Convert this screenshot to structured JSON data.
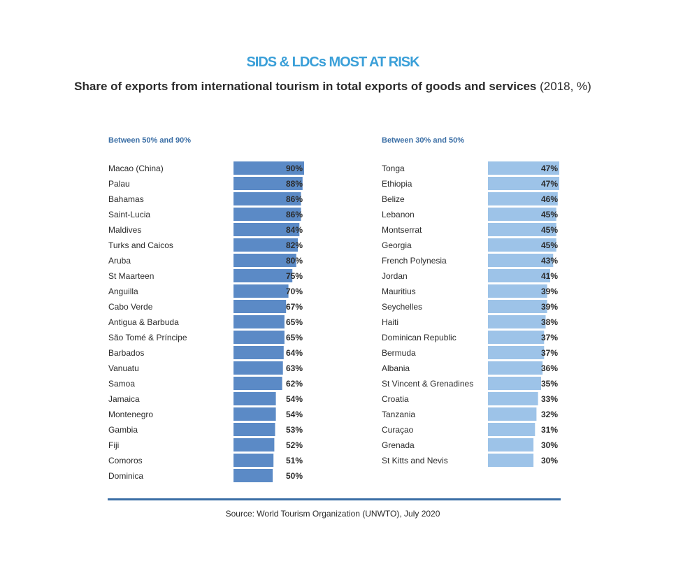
{
  "chart_data": {
    "type": "bar",
    "orientation": "horizontal",
    "title": "SIDS & LDCs MOST AT RISK",
    "subtitle_bold": "Share of exports from international tourism in total exports of goods and services",
    "subtitle_unit": "(2018, %)",
    "source": "Source: World Tourism Organization (UNWTO), July 2020",
    "xlim": [
      0,
      90
    ],
    "groups": [
      {
        "name": "Between 50% and 90%",
        "color": "#5b8ac6",
        "categories": [
          "Macao (China)",
          "Palau",
          "Bahamas",
          "Saint-Lucia",
          "Maldives",
          "Turks and Caicos",
          "Aruba",
          "St Maarteen",
          "Anguilla",
          "Cabo Verde",
          "Antigua & Barbuda",
          "São Tomé & Príncipe",
          "Barbados",
          "Vanuatu",
          "Samoa",
          "Jamaica",
          "Montenegro",
          "Gambia",
          "Fiji",
          "Comoros",
          "Dominica"
        ],
        "values": [
          90,
          88,
          86,
          86,
          84,
          82,
          80,
          75,
          70,
          67,
          65,
          65,
          64,
          63,
          62,
          54,
          54,
          53,
          52,
          51,
          50
        ],
        "labels": [
          "90%",
          "88%",
          "86%",
          "86%",
          "84%",
          "82%",
          "80%",
          "75%",
          "70%",
          "67%",
          "65%",
          "65%",
          "64%",
          "63%",
          "62%",
          "54%",
          "54%",
          "53%",
          "52%",
          "51%",
          "50%"
        ]
      },
      {
        "name": "Between 30% and 50%",
        "color": "#9dc3e8",
        "categories": [
          "Tonga",
          "Ethiopia",
          "Belize",
          "Lebanon",
          "Montserrat",
          "Georgia",
          "French Polynesia",
          "Jordan",
          "Mauritius",
          "Seychelles",
          "Haiti",
          "Dominican Republic",
          "Bermuda",
          "Albania",
          "St Vincent & Grenadines",
          "Croatia",
          "Tanzania",
          "Curaçao",
          "Grenada",
          "St Kitts and Nevis"
        ],
        "values": [
          47,
          47,
          46,
          45,
          45,
          45,
          43,
          41,
          39,
          39,
          38,
          37,
          37,
          36,
          35,
          33,
          32,
          31,
          30,
          30
        ],
        "labels": [
          "47%",
          "47%",
          "46%",
          "45%",
          "45%",
          "45%",
          "43%",
          "41%",
          "39%",
          "39%",
          "38%",
          "37%",
          "37%",
          "36%",
          "35%",
          "33%",
          "32%",
          "31%",
          "30%",
          "30%"
        ]
      }
    ]
  }
}
